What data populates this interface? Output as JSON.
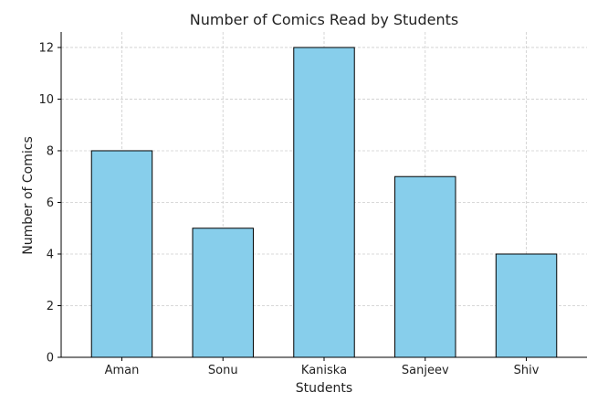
{
  "chart_data": {
    "type": "bar",
    "title": "Number of Comics Read by Students",
    "xlabel": "Students",
    "ylabel": "Number of Comics",
    "categories": [
      "Aman",
      "Sonu",
      "Kaniska",
      "Sanjeev",
      "Shiv"
    ],
    "values": [
      8,
      5,
      12,
      7,
      4
    ],
    "ylim": [
      0,
      12.6
    ],
    "yticks": [
      0,
      2,
      4,
      6,
      8,
      10,
      12
    ],
    "grid": true,
    "bar_color": "#87ceeb",
    "edge_color": "#000000"
  }
}
